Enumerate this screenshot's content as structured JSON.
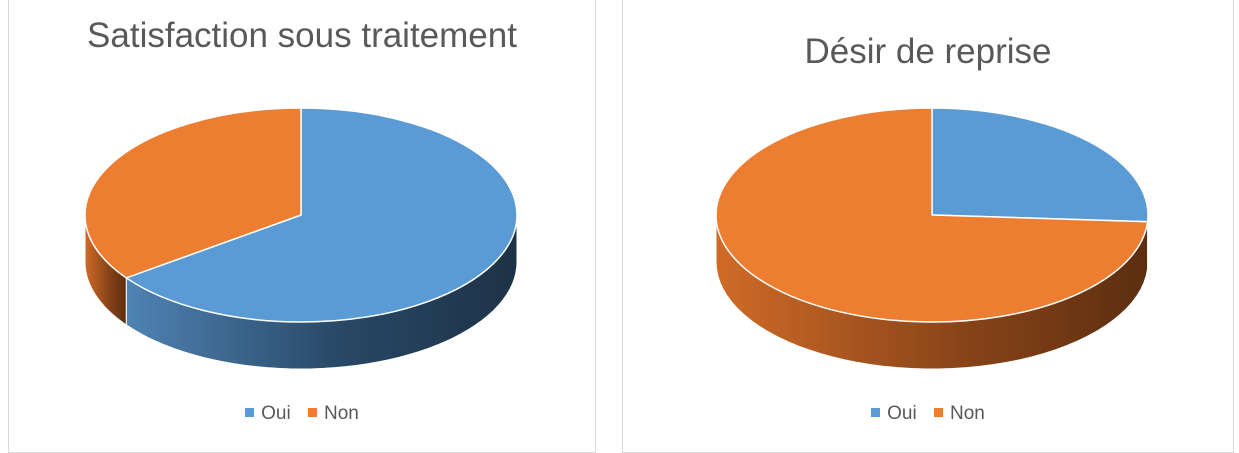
{
  "colors": {
    "oui": "#5b9bd5",
    "non": "#ed7d31"
  },
  "chart_data": [
    {
      "type": "pie",
      "title": "Satisfaction sous traitement",
      "labels": [
        "Oui",
        "Non"
      ],
      "values": [
        65,
        35
      ],
      "legend_position": "bottom"
    },
    {
      "type": "pie",
      "title": "Désir de reprise",
      "labels": [
        "Oui",
        "Non"
      ],
      "values": [
        26,
        74
      ],
      "legend_position": "bottom"
    }
  ]
}
